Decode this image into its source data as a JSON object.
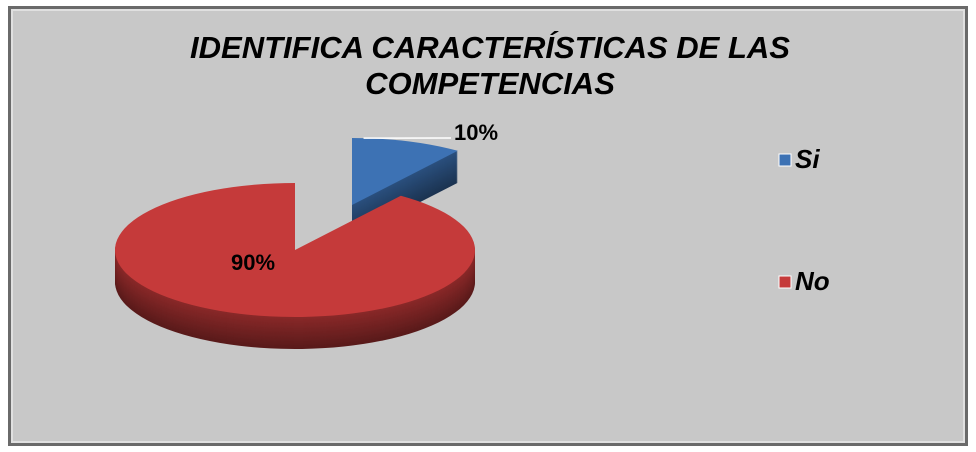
{
  "chart_data": {
    "type": "pie3d",
    "title": "IDENTIFICA CARACTERÍSTICAS DE LAS COMPETENCIAS",
    "categories": [
      "Si",
      "No"
    ],
    "values": [
      10,
      90
    ],
    "value_labels": [
      "10%",
      "90%"
    ],
    "colors": [
      "#3d72b4",
      "#c53a3a"
    ],
    "legend": "right"
  }
}
